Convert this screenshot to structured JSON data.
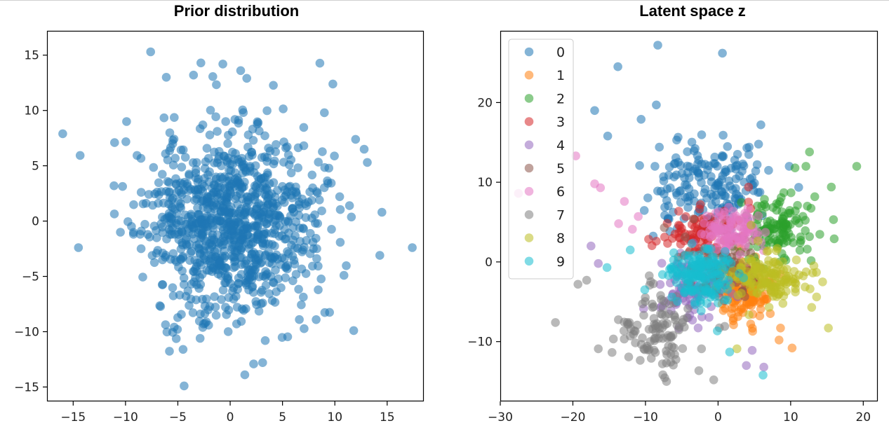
{
  "chart_data": [
    {
      "type": "scatter",
      "title": "Prior distribution",
      "xlabel": "",
      "ylabel": "",
      "xlim": [
        -17.5,
        18.5
      ],
      "ylim": [
        -16.3,
        17.2
      ],
      "xticks": [
        -15,
        -10,
        -5,
        0,
        5,
        10,
        15
      ],
      "yticks": [
        -15,
        -10,
        -5,
        0,
        5,
        10,
        15
      ],
      "tick_labels_x": [
        "−15",
        "−10",
        "−5",
        "0",
        "5",
        "10",
        "15"
      ],
      "tick_labels_y": [
        "−15",
        "−10",
        "−5",
        "0",
        "5",
        "10",
        "15"
      ],
      "grid": false,
      "legend": null,
      "series": [
        {
          "color": "#1f77b4",
          "distribution": {
            "center": [
              0,
              0
            ],
            "spread": [
              5.3,
              5.3
            ],
            "count": 1000,
            "seed": 11
          },
          "notable_points": [
            [
              -16.0,
              7.9
            ],
            [
              17.4,
              -2.4
            ],
            [
              -7.6,
              15.3
            ],
            [
              -4.4,
              -14.9
            ],
            [
              1.4,
              -13.9
            ],
            [
              14.5,
              0.8
            ],
            [
              14.3,
              -3.1
            ],
            [
              -14.5,
              -2.4
            ],
            [
              -2.8,
              14.3
            ],
            [
              -0.7,
              14.2
            ],
            [
              1.0,
              13.6
            ],
            [
              -6.1,
              13.0
            ],
            [
              -3.5,
              13.2
            ],
            [
              9.0,
              9.8
            ],
            [
              12.8,
              6.5
            ],
            [
              13.1,
              5.3
            ],
            [
              -9.9,
              9.0
            ],
            [
              3.1,
              -12.8
            ],
            [
              -4.5,
              -11.6
            ],
            [
              11.8,
              -9.9
            ]
          ]
        }
      ]
    },
    {
      "type": "scatter",
      "title": "Latent space z",
      "xlabel": "",
      "ylabel": "",
      "xlim": [
        -30,
        22
      ],
      "ylim": [
        -17.5,
        29
      ],
      "xticks": [
        -30,
        -20,
        -10,
        0,
        10,
        20
      ],
      "yticks": [
        -10,
        0,
        10,
        20
      ],
      "tick_labels_x": [
        "−30",
        "−20",
        "−10",
        "0",
        "10",
        "20"
      ],
      "tick_labels_y": [
        "−10",
        "0",
        "10",
        "20"
      ],
      "grid": false,
      "legend": "top-left",
      "series": [
        {
          "name": "0",
          "color": "#1f77b4",
          "distribution": {
            "center": [
              -1.0,
              9.5
            ],
            "spread": [
              4.8,
              3.6
            ],
            "count": 180,
            "seed": 101
          },
          "notable_points": [
            [
              -8.3,
              27.2
            ],
            [
              0.6,
              26.2
            ],
            [
              -13.8,
              24.5
            ],
            [
              -17.0,
              19.0
            ],
            [
              -8.5,
              19.7
            ],
            [
              -15.2,
              15.8
            ],
            [
              5.9,
              17.2
            ],
            [
              -10.6,
              17.9
            ],
            [
              0.7,
              15.9
            ],
            [
              -5.7,
              15.3
            ],
            [
              9.8,
              12.0
            ],
            [
              -10.8,
              12.1
            ]
          ]
        },
        {
          "name": "1",
          "color": "#ff7f0e",
          "distribution": {
            "center": [
              3.5,
              -3.5
            ],
            "spread": [
              2.4,
              2.2
            ],
            "count": 150,
            "seed": 202
          },
          "notable_points": [
            [
              10.2,
              -10.8
            ],
            [
              8.4,
              -9.8
            ],
            [
              8.6,
              -8.3
            ],
            [
              4.5,
              -7.8
            ]
          ]
        },
        {
          "name": "2",
          "color": "#2ca02c",
          "distribution": {
            "center": [
              8.5,
              4.0
            ],
            "spread": [
              3.0,
              2.6
            ],
            "count": 120,
            "seed": 303
          },
          "notable_points": [
            [
              19.1,
              12.0
            ],
            [
              12.6,
              13.8
            ],
            [
              15.6,
              9.4
            ],
            [
              15.9,
              5.3
            ],
            [
              16.0,
              2.9
            ],
            [
              12.1,
              12.0
            ],
            [
              10.6,
              11.8
            ],
            [
              12.3,
              7.0
            ]
          ]
        },
        {
          "name": "3",
          "color": "#d62728",
          "distribution": {
            "center": [
              -2.0,
              3.5
            ],
            "spread": [
              3.2,
              1.6
            ],
            "count": 90,
            "seed": 404
          },
          "notable_points": [
            [
              4.2,
              9.4
            ],
            [
              4.2,
              7.5
            ],
            [
              -8.5,
              2.6
            ],
            [
              4.5,
              6.7
            ]
          ]
        },
        {
          "name": "4",
          "color": "#9467bd",
          "distribution": {
            "center": [
              -3.5,
              -3.0
            ],
            "spread": [
              3.6,
              2.8
            ],
            "count": 100,
            "seed": 505
          },
          "notable_points": [
            [
              -17.5,
              2.0
            ],
            [
              -16.5,
              -0.2
            ],
            [
              3.9,
              -13.0
            ],
            [
              6.3,
              -13.2
            ],
            [
              4.7,
              -11.1
            ]
          ]
        },
        {
          "name": "5",
          "color": "#8c564b",
          "distribution": {
            "center": [
              1.0,
              -1.0
            ],
            "spread": [
              3.5,
              2.5
            ],
            "count": 80,
            "seed": 606
          },
          "notable_points": [
            [
              -7.4,
              4.3
            ],
            [
              -3.4,
              5.4
            ]
          ]
        },
        {
          "name": "6",
          "color": "#e377c2",
          "distribution": {
            "center": [
              2.2,
              4.0
            ],
            "spread": [
              2.4,
              1.8
            ],
            "count": 110,
            "seed": 707
          },
          "notable_points": [
            [
              -19.6,
              13.3
            ],
            [
              -27.5,
              8.6
            ],
            [
              -17.0,
              9.8
            ],
            [
              -16.2,
              9.3
            ],
            [
              -12.9,
              7.6
            ],
            [
              -13.7,
              4.8
            ],
            [
              -11.8,
              4.1
            ],
            [
              -11.0,
              5.7
            ]
          ]
        },
        {
          "name": "7",
          "color": "#7f7f7f",
          "distribution": {
            "center": [
              -8.0,
              -8.5
            ],
            "spread": [
              3.6,
              3.0
            ],
            "count": 110,
            "seed": 808
          },
          "notable_points": [
            [
              -22.4,
              -7.6
            ],
            [
              -18.1,
              -2.3
            ],
            [
              -16.5,
              -10.9
            ],
            [
              -7.1,
              -15.0
            ],
            [
              -0.6,
              -14.8
            ],
            [
              -19.3,
              -2.8
            ]
          ]
        },
        {
          "name": "8",
          "color": "#bcbd22",
          "distribution": {
            "center": [
              7.0,
              -2.0
            ],
            "spread": [
              3.2,
              2.0
            ],
            "count": 140,
            "seed": 909
          },
          "notable_points": [
            [
              15.2,
              -8.3
            ],
            [
              14.4,
              -2.5
            ],
            [
              13.2,
              -0.5
            ],
            [
              2.6,
              -10.9
            ],
            [
              12.9,
              -5.7
            ]
          ]
        },
        {
          "name": "9",
          "color": "#17becf",
          "distribution": {
            "center": [
              -2.5,
              -1.5
            ],
            "spread": [
              3.0,
              2.2
            ],
            "count": 170,
            "seed": 111
          },
          "notable_points": [
            [
              -15.3,
              -0.7
            ],
            [
              -12.1,
              1.5
            ],
            [
              6.2,
              -14.2
            ],
            [
              1.6,
              -11.3
            ],
            [
              -10.1,
              -3.5
            ]
          ]
        }
      ]
    }
  ]
}
